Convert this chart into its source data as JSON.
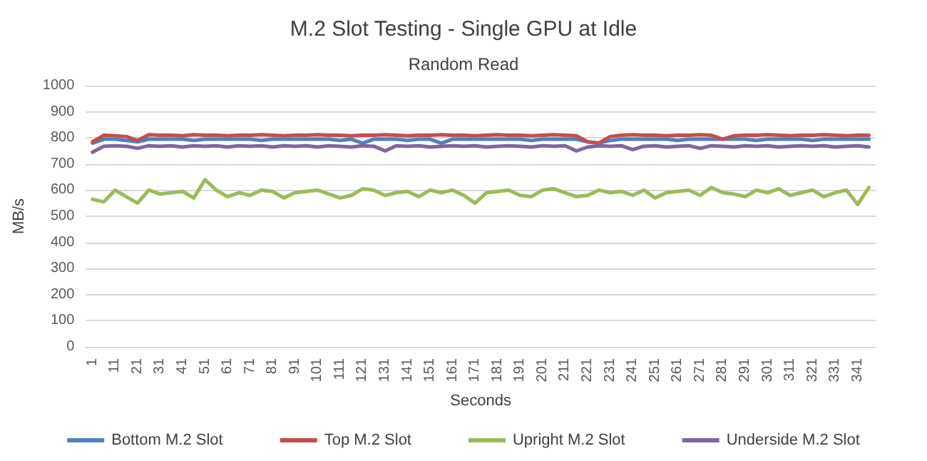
{
  "chart_data": {
    "type": "line",
    "title": "M.2 Slot Testing - Single GPU at Idle",
    "subtitle": "Random Read",
    "xlabel": "Seconds",
    "ylabel": "MB/s",
    "x": [
      1,
      6,
      11,
      16,
      21,
      26,
      31,
      36,
      41,
      46,
      51,
      56,
      61,
      66,
      71,
      76,
      81,
      86,
      91,
      96,
      101,
      106,
      111,
      116,
      121,
      126,
      131,
      136,
      141,
      146,
      151,
      156,
      161,
      166,
      171,
      176,
      181,
      186,
      191,
      196,
      201,
      206,
      211,
      216,
      221,
      226,
      231,
      236,
      241,
      246,
      251,
      256,
      261,
      266,
      271,
      276,
      281,
      286,
      291,
      296,
      301,
      306,
      311,
      316,
      321,
      326,
      331,
      336,
      341,
      346
    ],
    "series": [
      {
        "name": "Bottom M.2 Slot",
        "color": "#4f81bd",
        "values": [
          780,
          795,
          795,
          790,
          785,
          795,
          795,
          795,
          795,
          790,
          795,
          795,
          795,
          795,
          795,
          790,
          795,
          795,
          795,
          795,
          795,
          795,
          790,
          795,
          780,
          795,
          795,
          795,
          790,
          795,
          795,
          780,
          795,
          795,
          795,
          795,
          795,
          795,
          795,
          790,
          795,
          795,
          795,
          795,
          785,
          780,
          790,
          795,
          795,
          795,
          795,
          795,
          790,
          795,
          795,
          795,
          795,
          795,
          795,
          790,
          795,
          795,
          795,
          795,
          790,
          795,
          795,
          795,
          795,
          795
        ]
      },
      {
        "name": "Top M.2 Slot",
        "color": "#c0504d",
        "values": [
          785,
          810,
          808,
          805,
          790,
          812,
          810,
          810,
          808,
          812,
          810,
          810,
          808,
          810,
          810,
          812,
          810,
          808,
          810,
          810,
          812,
          810,
          810,
          808,
          810,
          810,
          812,
          810,
          808,
          810,
          810,
          812,
          810,
          810,
          808,
          810,
          812,
          810,
          810,
          808,
          810,
          812,
          810,
          808,
          785,
          780,
          805,
          810,
          812,
          810,
          810,
          808,
          810,
          810,
          812,
          810,
          795,
          808,
          810,
          810,
          812,
          810,
          808,
          810,
          810,
          812,
          810,
          808,
          810,
          810
        ]
      },
      {
        "name": "Upright M.2 Slot",
        "color": "#9bbb59",
        "values": [
          565,
          555,
          600,
          575,
          550,
          600,
          585,
          590,
          595,
          570,
          640,
          600,
          575,
          590,
          580,
          600,
          595,
          570,
          590,
          595,
          600,
          585,
          570,
          580,
          605,
          600,
          580,
          590,
          595,
          575,
          600,
          590,
          600,
          580,
          550,
          590,
          595,
          600,
          580,
          575,
          600,
          605,
          590,
          575,
          580,
          600,
          590,
          595,
          580,
          600,
          570,
          590,
          595,
          600,
          580,
          610,
          590,
          585,
          575,
          600,
          590,
          605,
          580,
          590,
          600,
          575,
          590,
          600,
          545,
          610
        ]
      },
      {
        "name": "Underside M.2 Slot",
        "color": "#8064a2",
        "values": [
          745,
          768,
          770,
          768,
          760,
          770,
          768,
          770,
          765,
          770,
          768,
          770,
          765,
          770,
          768,
          770,
          765,
          770,
          768,
          770,
          765,
          770,
          768,
          765,
          770,
          768,
          750,
          770,
          768,
          770,
          765,
          768,
          770,
          768,
          770,
          765,
          768,
          770,
          768,
          765,
          770,
          768,
          770,
          750,
          765,
          770,
          768,
          770,
          755,
          768,
          770,
          765,
          768,
          770,
          760,
          770,
          768,
          765,
          770,
          768,
          770,
          765,
          768,
          770,
          768,
          770,
          765,
          768,
          770,
          765
        ]
      }
    ],
    "xlim": [
      -2,
      349
    ],
    "xticks": [
      1,
      11,
      21,
      31,
      41,
      51,
      61,
      71,
      81,
      91,
      101,
      111,
      121,
      131,
      141,
      151,
      161,
      171,
      181,
      191,
      201,
      211,
      221,
      231,
      241,
      251,
      261,
      271,
      281,
      291,
      301,
      311,
      321,
      331,
      341
    ],
    "ylim": [
      0,
      1000
    ],
    "yticks": [
      0,
      100,
      200,
      300,
      400,
      500,
      600,
      700,
      800,
      900,
      1000
    ],
    "grid": "y",
    "legend": "bottom"
  }
}
